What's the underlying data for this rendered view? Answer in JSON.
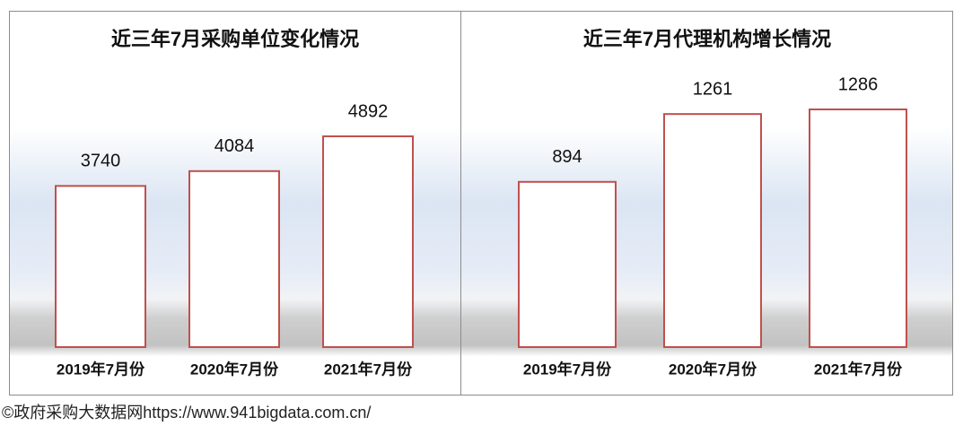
{
  "chart_data": [
    {
      "type": "bar",
      "title": "近三年7月采购单位变化情况",
      "categories": [
        "2019年7月份",
        "2020年7月份",
        "2021年7月份"
      ],
      "values": [
        3740,
        4084,
        4892
      ],
      "color": "#c0504d"
    },
    {
      "type": "bar",
      "title": "近三年7月代理机构增长情况",
      "categories": [
        "2019年7月份",
        "2020年7月份",
        "2021年7月份"
      ],
      "values": [
        894,
        1261,
        1286
      ],
      "color": "#c0504d"
    }
  ],
  "footer": "©政府采购大数据网https://www.941bigdata.com.cn/"
}
